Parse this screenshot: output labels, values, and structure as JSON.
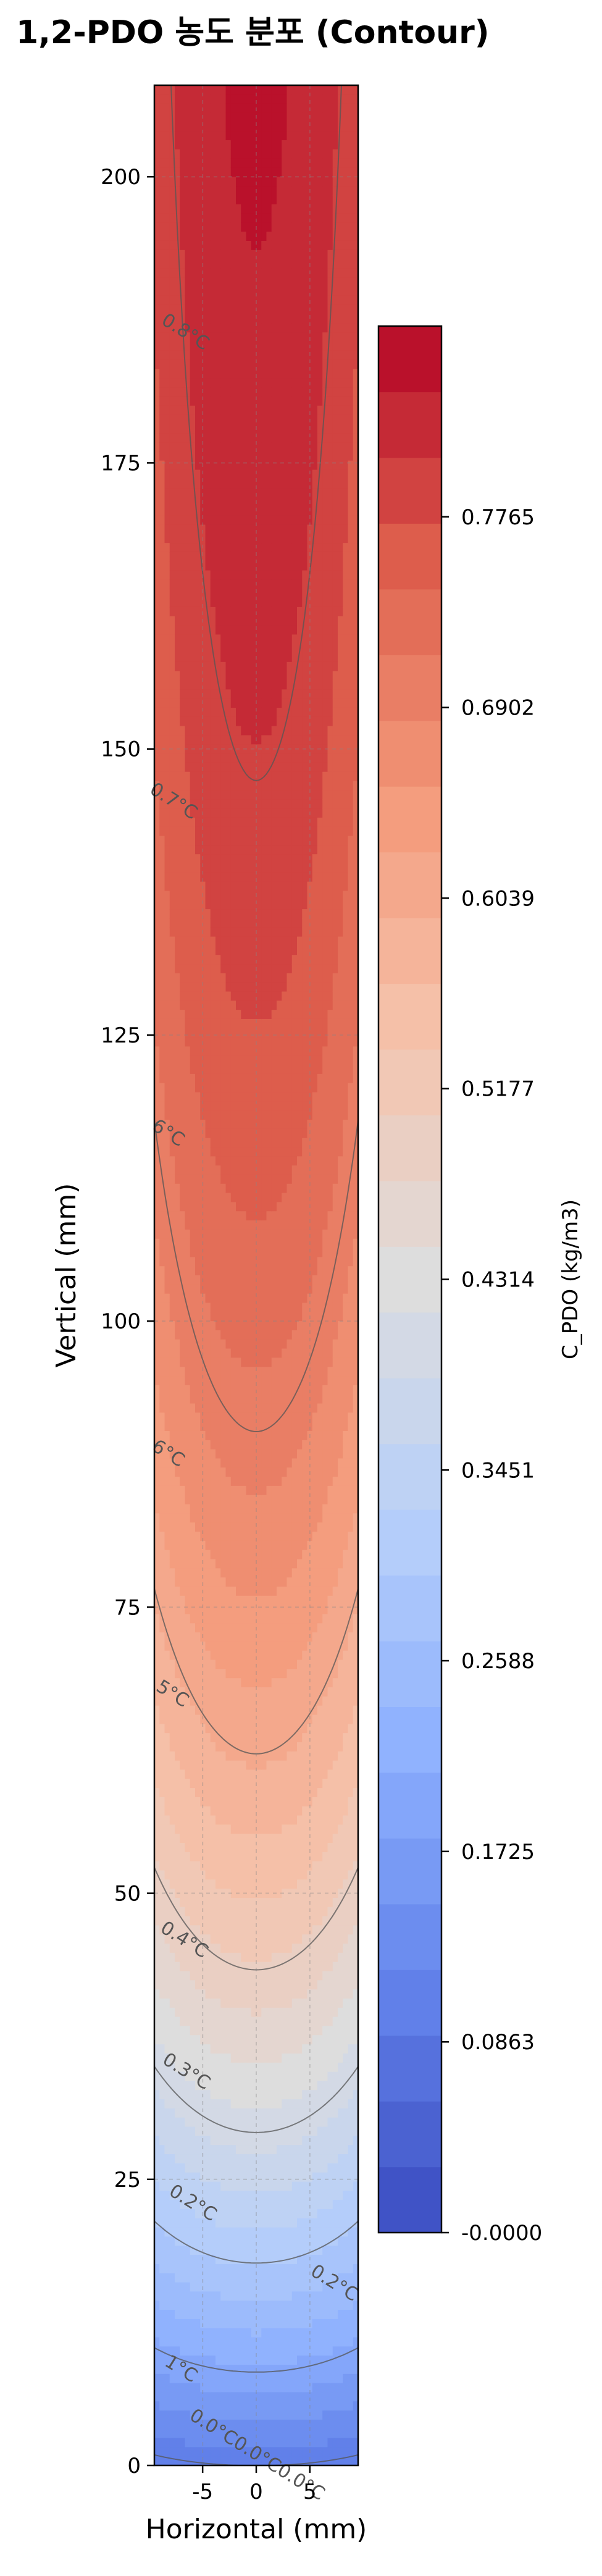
{
  "chart_data": {
    "type": "contour",
    "title": "1,2-PDO 농도 분포 (Contour)",
    "xlabel": "Horizontal (mm)",
    "ylabel": "Vertical (mm)",
    "xlim": [
      -9.5,
      9.5
    ],
    "ylim": [
      0,
      208
    ],
    "x_ticks": [
      "-5",
      "0",
      "5"
    ],
    "y_ticks": [
      "0",
      "25",
      "50",
      "75",
      "100",
      "125",
      "150",
      "175",
      "200"
    ],
    "grid": true,
    "colormap": "coolwarm",
    "colorbar": {
      "label": "C_PDO (kg/m3)",
      "range": [
        0,
        0.8628
      ],
      "levels": 29,
      "ticks": [
        "-0.0000",
        "0.0863",
        "0.1725",
        "0.2588",
        "0.3451",
        "0.4314",
        "0.5177",
        "0.6039",
        "0.6902",
        "0.7765"
      ]
    },
    "contour_lines": [
      0.1,
      0.2,
      0.3,
      0.4,
      0.5,
      0.6,
      0.7,
      0.8
    ],
    "contour_labels": [
      {
        "text": "0.8°C",
        "x": -6.9,
        "y": 186
      },
      {
        "text": "0.7°C",
        "x": -8.0,
        "y": 145
      },
      {
        "text": "6°C",
        "x": -8.5,
        "y": 116
      },
      {
        "text": "6°C",
        "x": -8.5,
        "y": 88
      },
      {
        "text": "5°C",
        "x": -8.1,
        "y": 67
      },
      {
        "text": "0.4°C",
        "x": -7.0,
        "y": 45.5
      },
      {
        "text": "0.3°C",
        "x": -6.8,
        "y": 34
      },
      {
        "text": "0.2°C",
        "x": -6.2,
        "y": 22.5
      },
      {
        "text": "0.2°C",
        "x": 7.0,
        "y": 15.5
      },
      {
        "text": "1°C",
        "x": -7.3,
        "y": 8
      },
      {
        "text": "0.0°C0.0°C0.0°C",
        "x": -0.2,
        "y": 0.5
      }
    ]
  }
}
